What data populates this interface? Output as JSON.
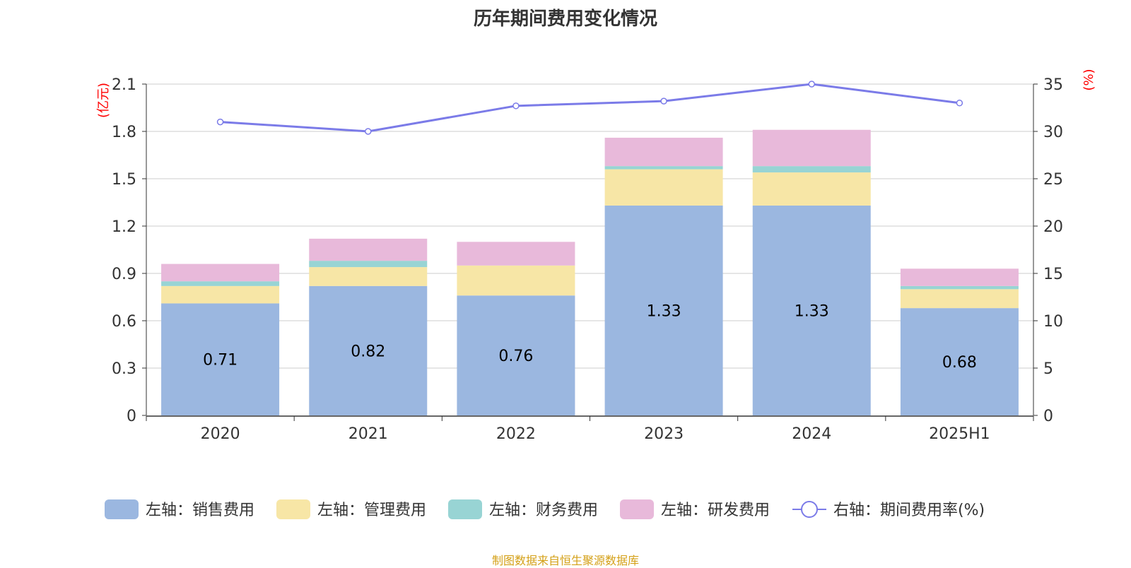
{
  "chart_data": {
    "type": "bar",
    "title": "历年期间费用变化情况",
    "categories": [
      "2020",
      "2021",
      "2022",
      "2023",
      "2024",
      "2025H1"
    ],
    "series": [
      {
        "name": "左轴：销售费用",
        "type": "bar",
        "axis": "left",
        "values": [
          0.71,
          0.82,
          0.76,
          1.33,
          1.33,
          0.68
        ],
        "color": "#9bb7e0",
        "labels": [
          "0.71",
          "0.82",
          "0.76",
          "1.33",
          "1.33",
          "0.68"
        ]
      },
      {
        "name": "左轴：管理费用",
        "type": "bar",
        "axis": "left",
        "values": [
          0.11,
          0.12,
          0.19,
          0.23,
          0.21,
          0.12
        ],
        "color": "#f7e6a6"
      },
      {
        "name": "左轴：财务费用",
        "type": "bar",
        "axis": "left",
        "values": [
          0.03,
          0.04,
          0.0,
          0.02,
          0.04,
          0.02
        ],
        "color": "#98d4d4"
      },
      {
        "name": "左轴：研发费用",
        "type": "bar",
        "axis": "left",
        "values": [
          0.11,
          0.14,
          0.15,
          0.18,
          0.23,
          0.11
        ],
        "color": "#e8b9da"
      },
      {
        "name": "右轴：期间费用率(%)",
        "type": "line",
        "axis": "right",
        "values": [
          31.0,
          30.0,
          32.7,
          33.2,
          35.0,
          33.0
        ],
        "color": "#7b7be8"
      }
    ],
    "left_axis": {
      "label": "(亿元)",
      "ylim": [
        0,
        2.1
      ],
      "ticks": [
        "0",
        "0.3",
        "0.6",
        "0.9",
        "1.2",
        "1.5",
        "1.8",
        "2.1"
      ]
    },
    "right_axis": {
      "label": "(%)",
      "ylim": [
        0,
        35
      ],
      "ticks": [
        "0",
        "5",
        "10",
        "15",
        "20",
        "25",
        "30",
        "35"
      ]
    },
    "grid": true,
    "legend_position": "bottom",
    "source": "制图数据来自恒生聚源数据库"
  },
  "colors": {
    "axis_label": "#ff0000",
    "source_text": "#d4a017",
    "grid": "#cccccc",
    "text": "#333333"
  }
}
